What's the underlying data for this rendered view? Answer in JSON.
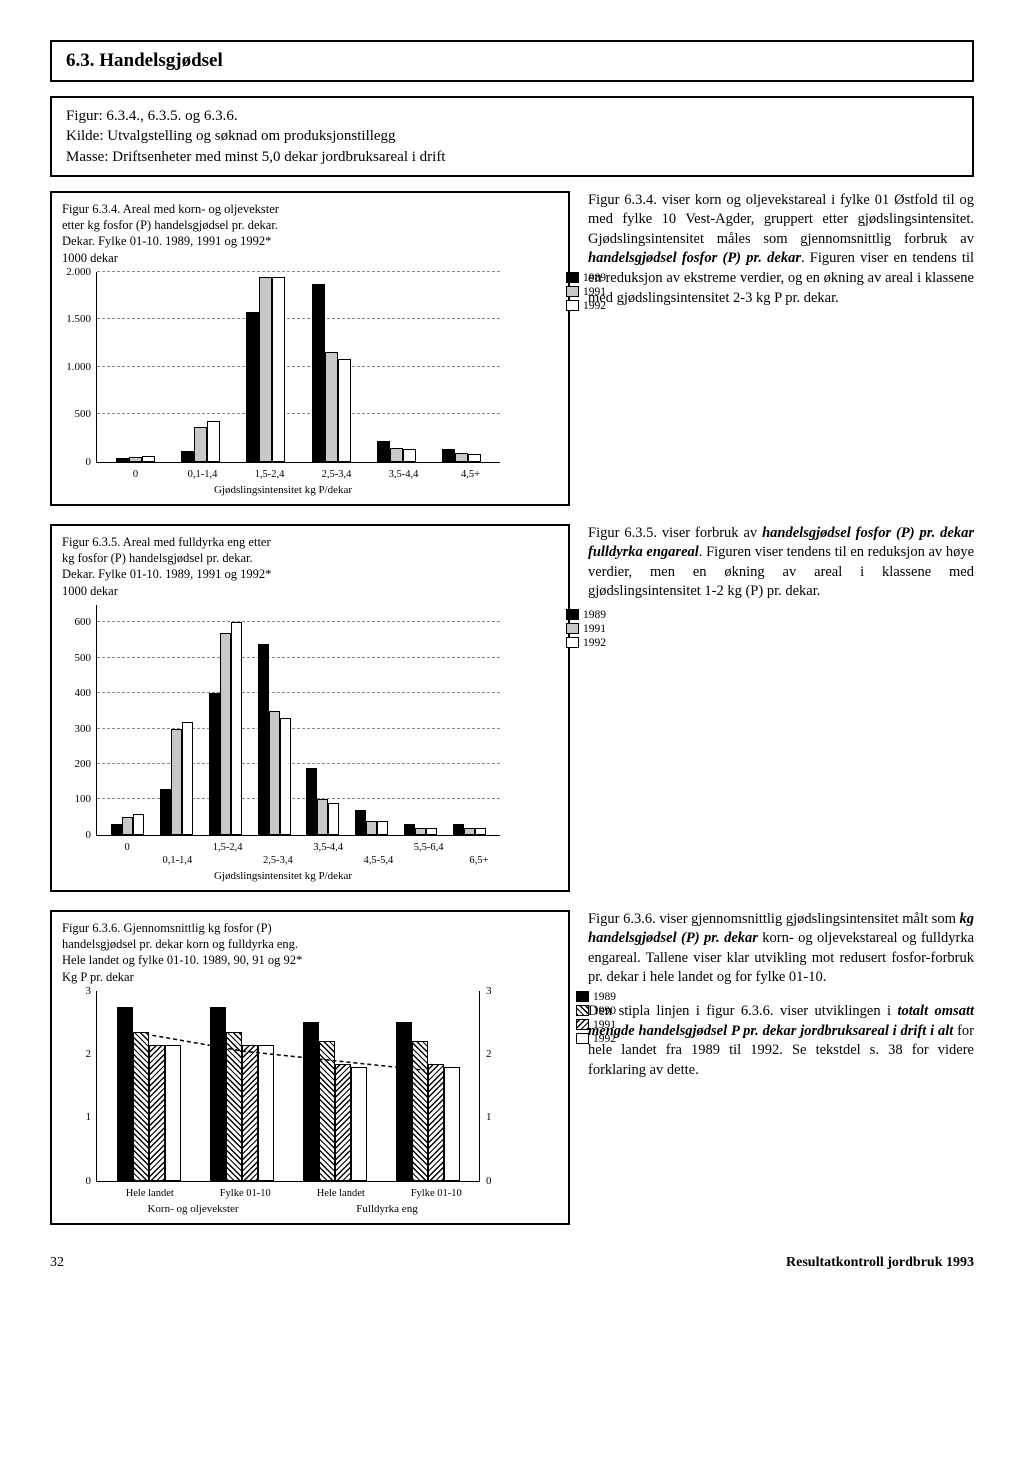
{
  "section_title": "6.3. Handelsgjødsel",
  "info_box": {
    "line1": "Figur: 6.3.4., 6.3.5. og 6.3.6.",
    "line2": "Kilde: Utvalgstelling og søknad om produksjonstillegg",
    "line3": "Masse: Driftsenheter med minst 5,0 dekar jordbruksareal i drift"
  },
  "chart1": {
    "type": "bar",
    "title_l1": "Figur 6.3.4. Areal med korn- og oljevekster",
    "title_l2": "etter kg fosfor (P) handelsgjødsel pr. dekar.",
    "title_l3": "Dekar. Fylke 01-10. 1989, 1991 og 1992*",
    "title_l4": "1000 dekar",
    "categories": [
      "0",
      "0,1-1,4",
      "1,5-2,4",
      "2,5-3,4",
      "3,5-4,4",
      "4,5+"
    ],
    "series_labels": [
      "1989",
      "1991",
      "1992"
    ],
    "series_colors": [
      "#000000",
      "#c8c8c8",
      "#ffffff"
    ],
    "ymax": 2000,
    "yticks": [
      0,
      500,
      1000,
      1500,
      2000
    ],
    "ytick_labels": [
      "0",
      "500",
      "1.000",
      "1.500",
      "2.000"
    ],
    "values": [
      [
        40,
        50,
        60
      ],
      [
        110,
        370,
        430
      ],
      [
        1580,
        1940,
        1940
      ],
      [
        1870,
        1160,
        1080
      ],
      [
        220,
        140,
        130
      ],
      [
        130,
        90,
        80
      ]
    ],
    "x_axis_title": "Gjødslingsintensitet kg P/dekar",
    "grid_dashed": true
  },
  "para1": "Figur 6.3.4. viser korn og oljevekstareal i fylke 01 Østfold til og med fylke 10 Vest-Agder, gruppert etter gjødslingsintensitet. Gjødslingsintensitet måles som gjennomsnittlig forbruk av <b><i>handelsgjødsel fosfor (P) pr. dekar</i></b>. Figuren viser en tendens til en reduksjon av ekstreme verdier, og en økning av areal i klassene med gjødslingsintensitet 2-3 kg P pr. dekar.",
  "chart2": {
    "type": "bar",
    "title_l1": "Figur 6.3.5. Areal med fulldyrka eng etter",
    "title_l2": "kg fosfor (P) handelsgjødsel pr. dekar.",
    "title_l3": "Dekar. Fylke 01-10. 1989, 1991 og 1992*",
    "title_l4": "1000 dekar",
    "categories_row1": [
      "0",
      "",
      "1,5-2,4",
      "",
      "3,5-4,4",
      "",
      "5,5-6,4",
      ""
    ],
    "categories_row2": [
      "",
      "0,1-1,4",
      "",
      "2,5-3,4",
      "",
      "4,5-5,4",
      "",
      "6,5+"
    ],
    "series_labels": [
      "1989",
      "1991",
      "1992"
    ],
    "series_colors": [
      "#000000",
      "#c8c8c8",
      "#ffffff"
    ],
    "ymax": 650,
    "yticks": [
      0,
      100,
      200,
      300,
      400,
      500,
      600
    ],
    "ytick_labels": [
      "0",
      "100",
      "200",
      "300",
      "400",
      "500",
      "600"
    ],
    "values": [
      [
        30,
        50,
        60
      ],
      [
        130,
        300,
        320
      ],
      [
        400,
        570,
        600
      ],
      [
        540,
        350,
        330
      ],
      [
        190,
        100,
        90
      ],
      [
        70,
        40,
        40
      ],
      [
        30,
        20,
        20
      ],
      [
        30,
        20,
        20
      ]
    ],
    "x_axis_title": "Gjødslingsintensitet kg P/dekar"
  },
  "para2": "Figur 6.3.5. viser forbruk av <b><i>handelsgjødsel fosfor (P) pr. dekar fulldyrka engareal</i></b>. Figuren viser tendens til en reduksjon av høye verdier, men en økning av areal i klassene med gjødslingsintensitet 1-2 kg (P) pr. dekar.",
  "chart3": {
    "type": "bar",
    "title_l1": "Figur 6.3.6. Gjennomsnittlig kg fosfor (P)",
    "title_l2": "handelsgjødsel pr. dekar korn og fulldyrka eng.",
    "title_l3": "Hele landet og fylke 01-10. 1989, 90, 91 og 92*",
    "title_l4": "Kg P pr. dekar",
    "categories": [
      "Hele landet",
      "Fylke 01-10",
      "Hele landet",
      "Fylke 01-10"
    ],
    "group_labels": [
      "Korn- og oljevekster",
      "Fulldyrka eng"
    ],
    "series_labels": [
      "1989",
      "1990",
      "1991",
      "1992"
    ],
    "series_patterns": [
      "solid",
      "hatch1",
      "hatch2",
      "white"
    ],
    "series_colors": [
      "#000000",
      "#ffffff",
      "#ffffff",
      "#ffffff"
    ],
    "ymax": 3,
    "yticks": [
      0,
      1,
      2,
      3
    ],
    "ytick_labels": [
      "0",
      "1",
      "2",
      "3"
    ],
    "values": [
      [
        2.75,
        2.35,
        2.15,
        2.15
      ],
      [
        2.75,
        2.35,
        2.15,
        2.15
      ],
      [
        2.5,
        2.2,
        1.85,
        1.8
      ],
      [
        2.5,
        2.2,
        1.85,
        1.8
      ]
    ],
    "trend": [
      2.3,
      2.05,
      1.9,
      1.75
    ]
  },
  "para3": "Figur 6.3.6. viser gjennomsnittlig gjødslingsintensitet målt som <b><i>kg handelsgjødsel (P) pr. dekar</i></b> korn- og oljevekstareal og fulldyrka engareal. Tallene viser klar utvikling mot redusert fosfor-forbruk pr. dekar i hele landet og for fylke 01-10.",
  "para4": "Den stipla linjen i figur 6.3.6. viser utviklingen i <b><i>totalt omsatt mengde handelsgjødsel P pr. dekar jordbruksareal i drift i alt</i></b> for hele landet fra 1989 til 1992. Se tekstdel s. 38 for videre forklaring av dette.",
  "footer": {
    "page": "32",
    "title": "Resultatkontroll jordbruk 1993"
  }
}
